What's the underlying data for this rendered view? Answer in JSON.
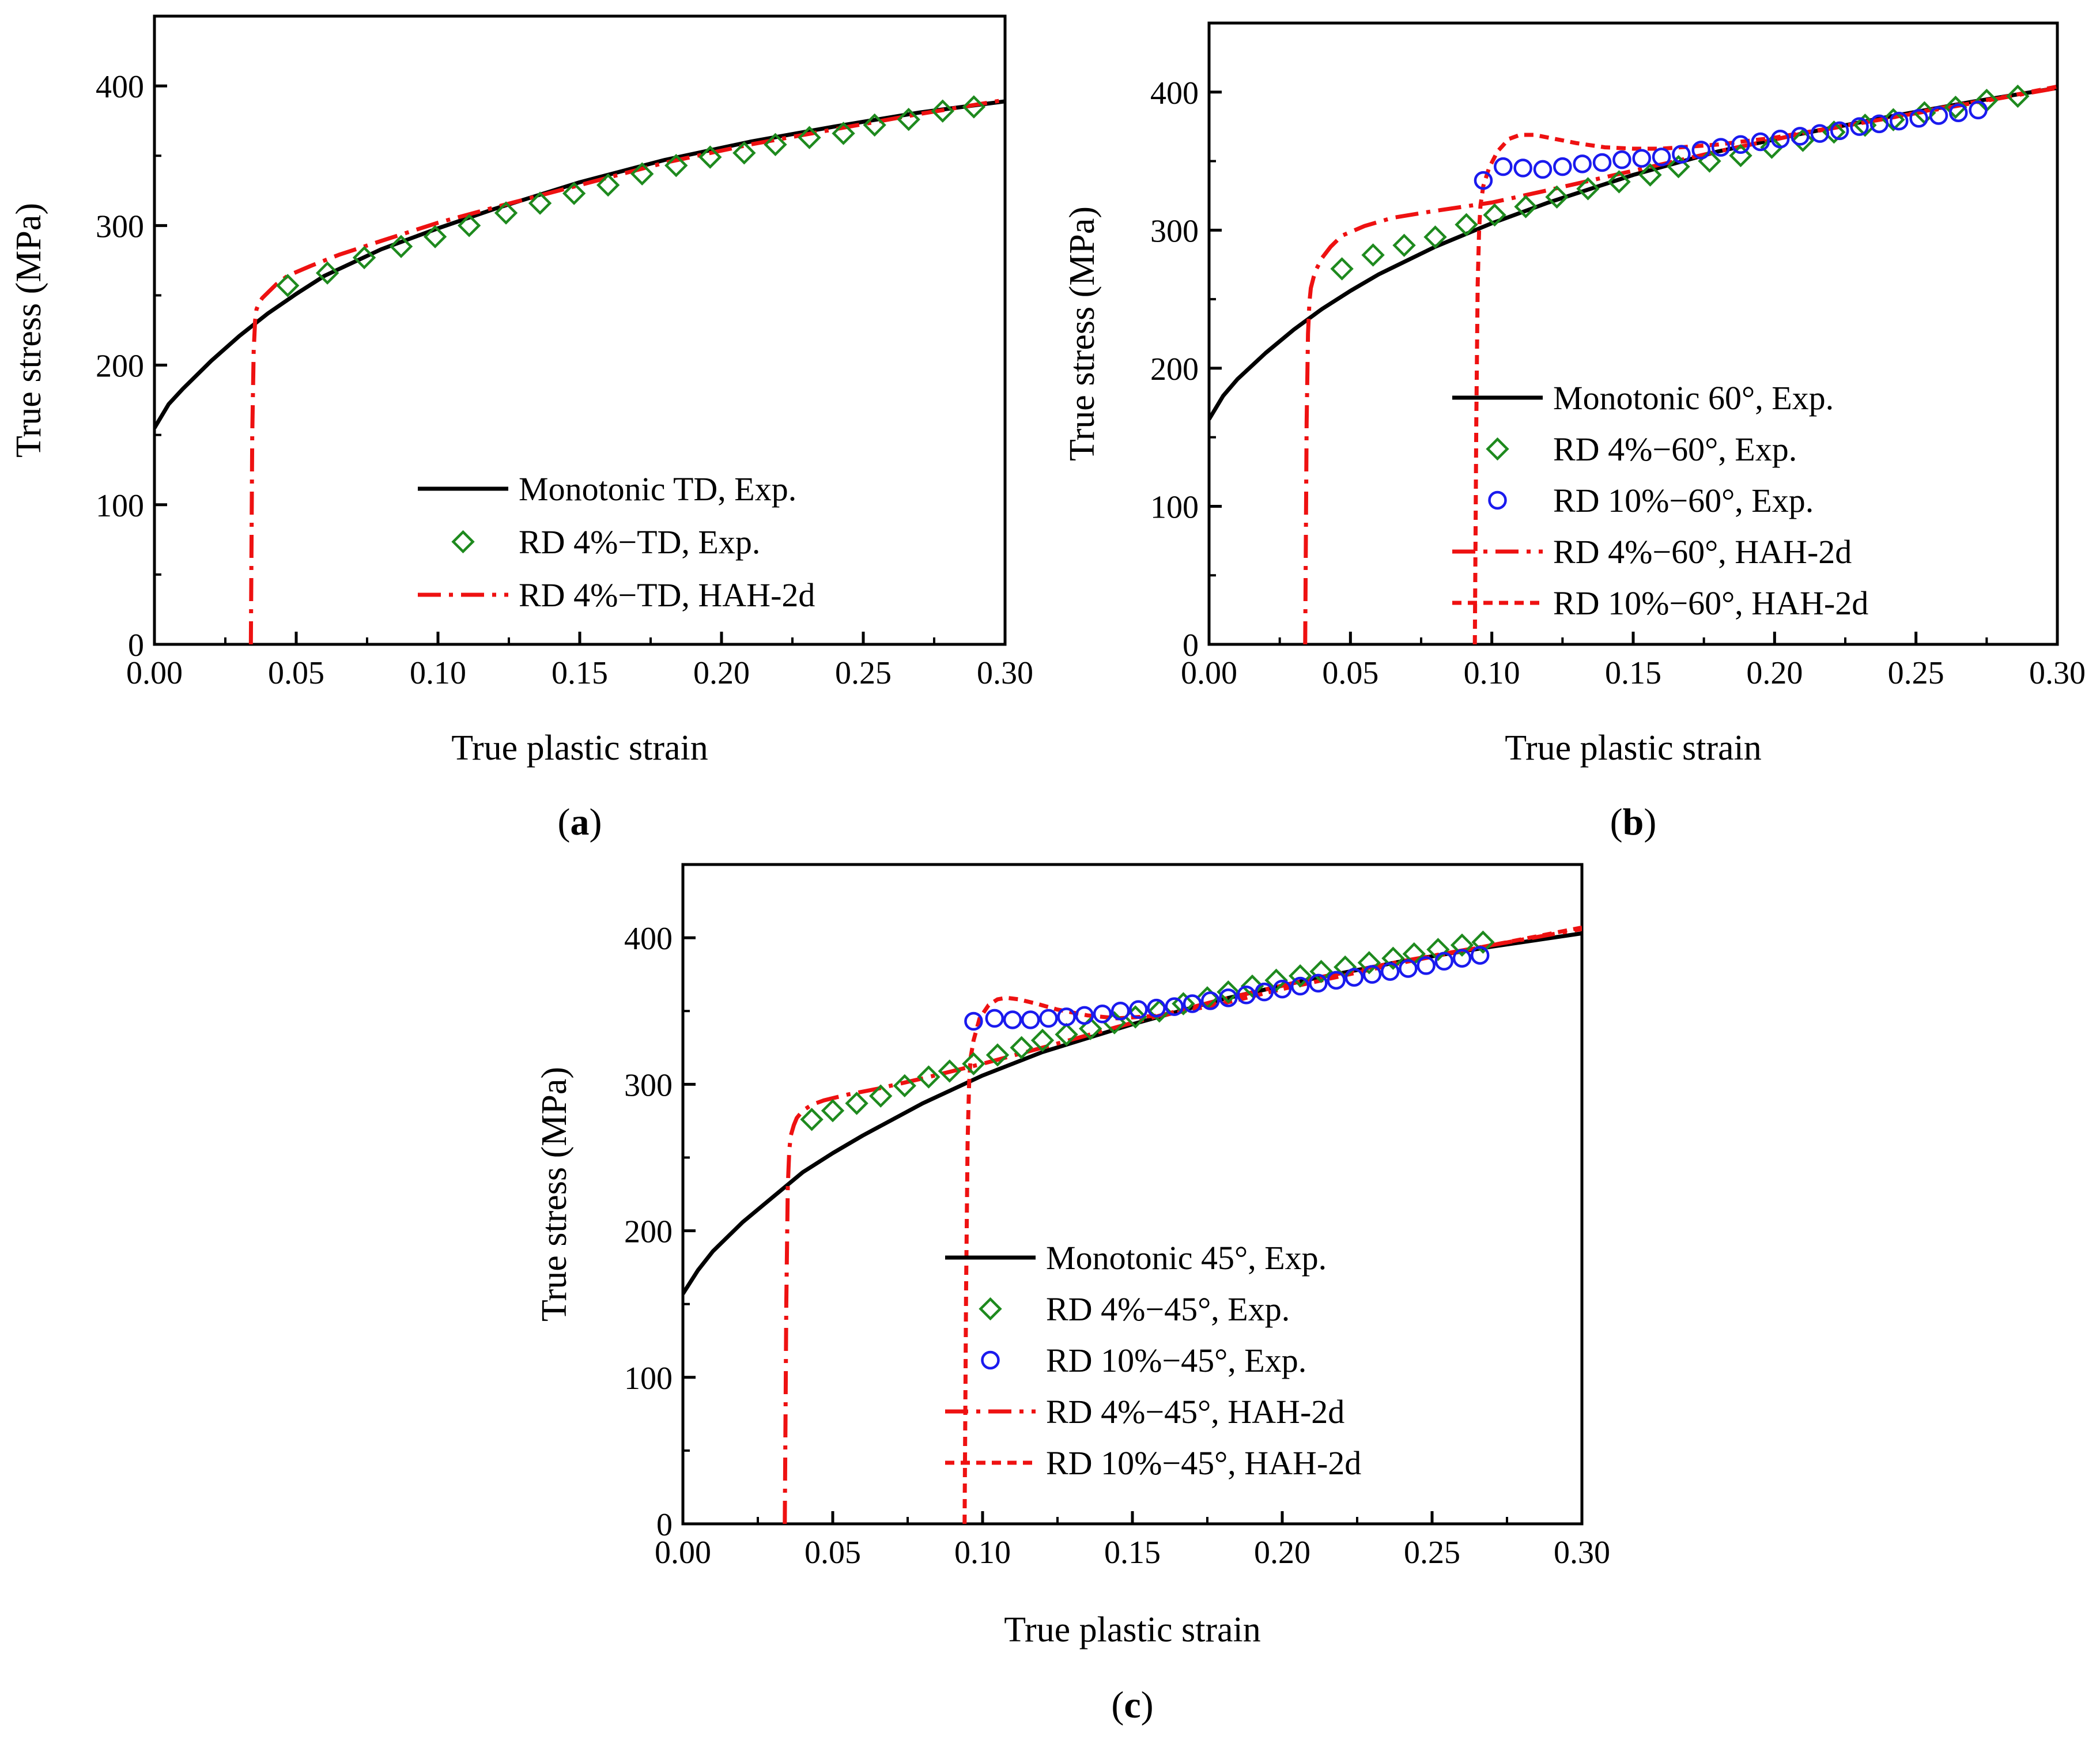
{
  "figure": {
    "panel_labels": [
      {
        "open": "(",
        "letter": "a",
        "close": ")"
      },
      {
        "open": "(",
        "letter": "b",
        "close": ")"
      },
      {
        "open": "(",
        "letter": "c",
        "close": ")"
      }
    ]
  },
  "colors": {
    "monotonic": "#000000",
    "rd4_exp": "#1e8a1e",
    "rd10_exp": "#1a1aee",
    "hah": "#ee1111"
  },
  "chart_data": [
    {
      "panel": "a",
      "type": "line",
      "xlabel": "True plastic strain",
      "ylabel": "True stress (MPa)",
      "xlim": [
        0,
        0.3
      ],
      "ylim": [
        0,
        450
      ],
      "xticks": [
        0,
        0.05,
        0.1,
        0.15,
        0.2,
        0.25,
        0.3
      ],
      "xtick_labels": [
        "0.00",
        "0.05",
        "0.10",
        "0.15",
        "0.20",
        "0.25",
        "0.30"
      ],
      "yticks": [
        0,
        100,
        200,
        300,
        400
      ],
      "ytick_labels": [
        "0",
        "100",
        "200",
        "300",
        "400"
      ],
      "legend_position": "bottom-right",
      "series": [
        {
          "key": "mono",
          "name": "Monotonic TD, Exp.",
          "style": "solid",
          "color": "#000000",
          "x": [
            0,
            0.005,
            0.01,
            0.02,
            0.03,
            0.04,
            0.05,
            0.06,
            0.08,
            0.1,
            0.12,
            0.15,
            0.18,
            0.21,
            0.24,
            0.27,
            0.3
          ],
          "y": [
            155,
            172,
            183,
            203,
            221,
            237,
            251,
            264,
            283,
            298,
            312,
            331,
            347,
            360,
            371,
            381,
            389
          ]
        },
        {
          "key": "rd4_exp",
          "name": "RD 4%−TD, Exp.",
          "style": "diamond",
          "color": "#1e8a1e",
          "x": [
            0.047,
            0.061,
            0.074,
            0.087,
            0.099,
            0.111,
            0.124,
            0.136,
            0.148,
            0.16,
            0.172,
            0.184,
            0.196,
            0.208,
            0.219,
            0.231,
            0.243,
            0.254,
            0.266,
            0.278,
            0.289
          ],
          "y": [
            257,
            266,
            277,
            285,
            292,
            300,
            309,
            316,
            323,
            329,
            337,
            343,
            349,
            352,
            358,
            363,
            366,
            372,
            376,
            382,
            385
          ]
        },
        {
          "key": "rd4_hah",
          "name": "RD 4%−TD, HAH-2d",
          "style": "dashdot",
          "color": "#ee1111",
          "x": [
            0.034,
            0.0345,
            0.035,
            0.0355,
            0.036,
            0.037,
            0.038,
            0.04,
            0.043,
            0.047,
            0.055,
            0.065,
            0.08,
            0.1,
            0.12,
            0.15,
            0.18,
            0.21,
            0.24,
            0.27,
            0.3
          ],
          "y": [
            0,
            150,
            210,
            232,
            240,
            245,
            248,
            252,
            258,
            264,
            271,
            279,
            289,
            302,
            313,
            329,
            345,
            358,
            369,
            380,
            390
          ]
        }
      ]
    },
    {
      "panel": "b",
      "type": "line",
      "xlabel": "True plastic strain",
      "ylabel": "True stress (MPa)",
      "xlim": [
        0,
        0.3
      ],
      "ylim": [
        0,
        450
      ],
      "xticks": [
        0,
        0.05,
        0.1,
        0.15,
        0.2,
        0.25,
        0.3
      ],
      "xtick_labels": [
        "0.00",
        "0.05",
        "0.10",
        "0.15",
        "0.20",
        "0.25",
        "0.30"
      ],
      "yticks": [
        0,
        100,
        200,
        300,
        400
      ],
      "ytick_labels": [
        "0",
        "100",
        "200",
        "300",
        "400"
      ],
      "legend_position": "bottom-right",
      "series": [
        {
          "key": "mono",
          "name": "Monotonic 60°, Exp.",
          "style": "solid",
          "color": "#000000",
          "x": [
            0,
            0.005,
            0.01,
            0.02,
            0.03,
            0.04,
            0.05,
            0.06,
            0.08,
            0.1,
            0.12,
            0.15,
            0.18,
            0.21,
            0.24,
            0.27,
            0.3
          ],
          "y": [
            163,
            180,
            192,
            211,
            228,
            243,
            256,
            268,
            288,
            305,
            320,
            340,
            357,
            370,
            382,
            393,
            403
          ]
        },
        {
          "key": "rd4_exp",
          "name": "RD 4%−60°, Exp.",
          "style": "diamond",
          "color": "#1e8a1e",
          "x": [
            0.047,
            0.058,
            0.069,
            0.08,
            0.091,
            0.101,
            0.112,
            0.123,
            0.134,
            0.145,
            0.156,
            0.166,
            0.177,
            0.188,
            0.199,
            0.21,
            0.221,
            0.232,
            0.242,
            0.253,
            0.264,
            0.275,
            0.286
          ],
          "y": [
            272,
            282,
            289,
            295,
            304,
            311,
            317,
            324,
            330,
            335,
            340,
            346,
            350,
            354,
            360,
            365,
            371,
            376,
            380,
            385,
            389,
            394,
            397
          ]
        },
        {
          "key": "rd10_exp",
          "name": "RD 10%−60°, Exp.",
          "style": "circle",
          "color": "#1a1aee",
          "x": [
            0.097,
            0.104,
            0.111,
            0.118,
            0.125,
            0.132,
            0.139,
            0.146,
            0.153,
            0.16,
            0.167,
            0.174,
            0.181,
            0.188,
            0.195,
            0.202,
            0.209,
            0.216,
            0.223,
            0.23,
            0.237,
            0.244,
            0.251,
            0.258,
            0.265,
            0.272
          ],
          "y": [
            336,
            346,
            345,
            344,
            346,
            348,
            349,
            351,
            352,
            353,
            355,
            358,
            360,
            362,
            364,
            366,
            368,
            370,
            372,
            375,
            377,
            379,
            381,
            383,
            385,
            387
          ]
        },
        {
          "key": "rd4_hah",
          "name": "RD 4%−60°, HAH-2d",
          "style": "dashdot",
          "color": "#ee1111",
          "x": [
            0.034,
            0.0345,
            0.035,
            0.0355,
            0.036,
            0.037,
            0.038,
            0.04,
            0.043,
            0.047,
            0.055,
            0.065,
            0.08,
            0.09,
            0.1,
            0.12,
            0.15,
            0.18,
            0.21,
            0.24,
            0.27,
            0.3
          ],
          "y": [
            0,
            160,
            225,
            248,
            258,
            266,
            272,
            280,
            288,
            296,
            303,
            309,
            314,
            317,
            320,
            329,
            343,
            357,
            370,
            381,
            392,
            403
          ]
        },
        {
          "key": "rd10_hah",
          "name": "RD 10%−60°, HAH-2d",
          "style": "dashed",
          "color": "#ee1111",
          "x": [
            0.094,
            0.0945,
            0.095,
            0.0955,
            0.096,
            0.097,
            0.099,
            0.102,
            0.106,
            0.11,
            0.115,
            0.12,
            0.13,
            0.14,
            0.15,
            0.16,
            0.18,
            0.2,
            0.22,
            0.24,
            0.26,
            0.28,
            0.3
          ],
          "y": [
            0,
            160,
            260,
            300,
            318,
            332,
            345,
            357,
            366,
            369,
            369,
            367,
            363,
            360,
            359,
            359,
            362,
            367,
            374,
            381,
            389,
            396,
            404
          ]
        }
      ]
    },
    {
      "panel": "c",
      "type": "line",
      "xlabel": "True plastic strain",
      "ylabel": "True stress (MPa)",
      "xlim": [
        0,
        0.3
      ],
      "ylim": [
        0,
        450
      ],
      "xticks": [
        0,
        0.05,
        0.1,
        0.15,
        0.2,
        0.25,
        0.3
      ],
      "xtick_labels": [
        "0.00",
        "0.05",
        "0.10",
        "0.15",
        "0.20",
        "0.25",
        "0.30"
      ],
      "yticks": [
        0,
        100,
        200,
        300,
        400
      ],
      "ytick_labels": [
        "0",
        "100",
        "200",
        "300",
        "400"
      ],
      "legend_position": "bottom-right",
      "series": [
        {
          "key": "mono",
          "name": "Monotonic 45°, Exp.",
          "style": "solid",
          "color": "#000000",
          "x": [
            0,
            0.005,
            0.01,
            0.02,
            0.03,
            0.04,
            0.05,
            0.06,
            0.08,
            0.1,
            0.12,
            0.15,
            0.18,
            0.21,
            0.24,
            0.27,
            0.3
          ],
          "y": [
            157,
            173,
            186,
            206,
            223,
            240,
            253,
            265,
            287,
            306,
            322,
            341,
            358,
            372,
            384,
            394,
            403
          ]
        },
        {
          "key": "rd4_exp",
          "name": "RD 4%−45°, Exp.",
          "style": "diamond",
          "color": "#1e8a1e",
          "x": [
            0.043,
            0.05,
            0.058,
            0.066,
            0.074,
            0.082,
            0.089,
            0.097,
            0.105,
            0.113,
            0.12,
            0.128,
            0.136,
            0.144,
            0.151,
            0.159,
            0.167,
            0.175,
            0.182,
            0.19,
            0.198,
            0.206,
            0.213,
            0.221,
            0.229,
            0.237,
            0.244,
            0.252,
            0.26,
            0.267
          ],
          "y": [
            276,
            282,
            287,
            292,
            299,
            305,
            309,
            314,
            320,
            325,
            330,
            334,
            338,
            342,
            346,
            350,
            355,
            359,
            363,
            367,
            371,
            374,
            377,
            380,
            383,
            386,
            389,
            392,
            395,
            397
          ]
        },
        {
          "key": "rd10_exp",
          "name": "RD 10%−45°, Exp.",
          "style": "circle",
          "color": "#1a1aee",
          "x": [
            0.097,
            0.104,
            0.11,
            0.116,
            0.122,
            0.128,
            0.134,
            0.14,
            0.146,
            0.152,
            0.158,
            0.164,
            0.17,
            0.176,
            0.182,
            0.188,
            0.194,
            0.2,
            0.206,
            0.212,
            0.218,
            0.224,
            0.23,
            0.236,
            0.242,
            0.248,
            0.254,
            0.26,
            0.266
          ],
          "y": [
            343,
            345,
            344,
            344,
            345,
            346,
            347,
            348,
            350,
            351,
            352,
            353,
            355,
            357,
            359,
            361,
            363,
            365,
            367,
            369,
            371,
            373,
            375,
            377,
            379,
            381,
            384,
            386,
            388
          ]
        },
        {
          "key": "rd4_hah",
          "name": "RD 4%−45°, HAH-2d",
          "style": "dashdot",
          "color": "#ee1111",
          "x": [
            0.034,
            0.0345,
            0.035,
            0.0355,
            0.036,
            0.037,
            0.038,
            0.04,
            0.043,
            0.047,
            0.055,
            0.065,
            0.08,
            0.1,
            0.12,
            0.15,
            0.18,
            0.21,
            0.24,
            0.27,
            0.3
          ],
          "y": [
            0,
            150,
            230,
            255,
            265,
            272,
            277,
            282,
            286,
            289,
            293,
            297,
            304,
            314,
            325,
            342,
            358,
            372,
            384,
            395,
            406
          ]
        },
        {
          "key": "rd10_hah",
          "name": "RD 10%−45°, HAH-2d",
          "style": "dashed",
          "color": "#ee1111",
          "x": [
            0.094,
            0.0945,
            0.095,
            0.0955,
            0.096,
            0.097,
            0.099,
            0.102,
            0.105,
            0.108,
            0.112,
            0.118,
            0.125,
            0.135,
            0.145,
            0.16,
            0.18,
            0.2,
            0.22,
            0.24,
            0.26,
            0.28,
            0.3
          ],
          "y": [
            0,
            160,
            260,
            300,
            318,
            330,
            345,
            354,
            358,
            359,
            358,
            355,
            351,
            347,
            345,
            347,
            355,
            365,
            374,
            383,
            391,
            399,
            407
          ]
        }
      ]
    }
  ]
}
